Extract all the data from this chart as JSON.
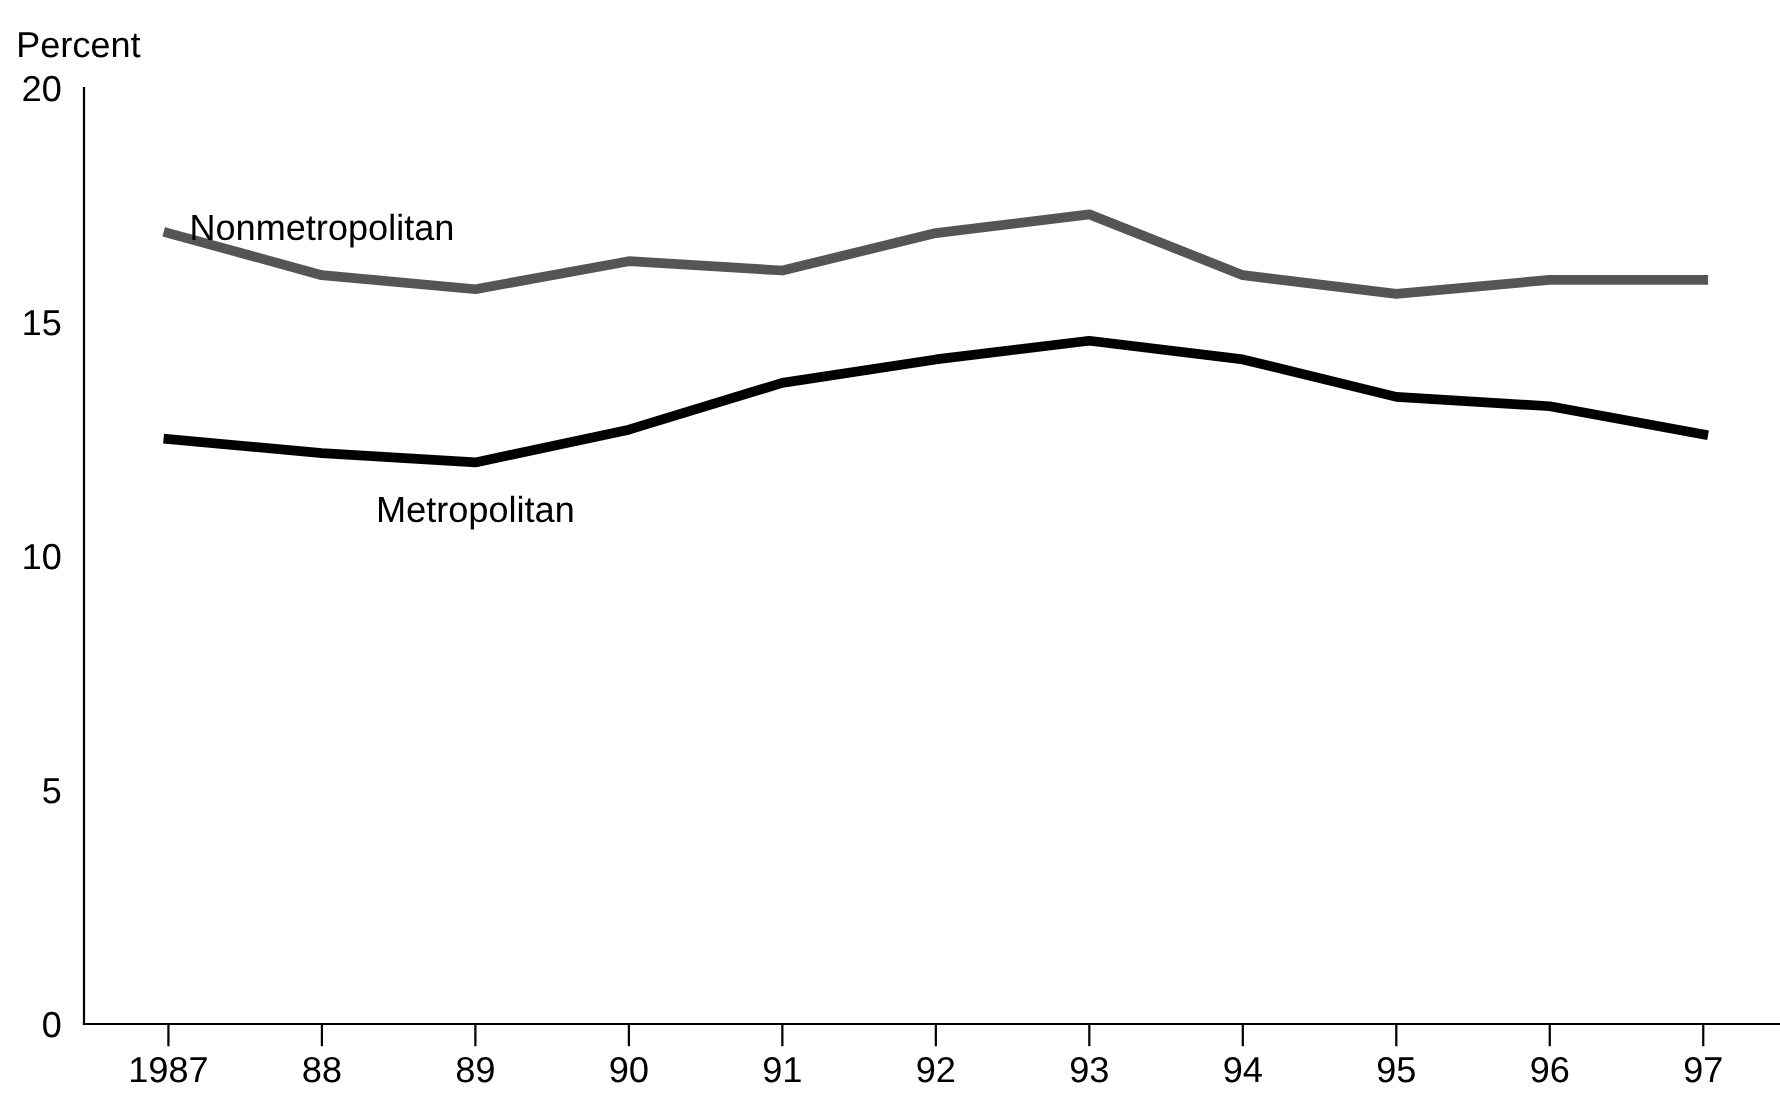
{
  "chart_data": {
    "type": "line",
    "ylabel": "Percent",
    "categories": [
      "1987",
      "88",
      "89",
      "90",
      "91",
      "92",
      "93",
      "94",
      "95",
      "96",
      "97"
    ],
    "series": [
      {
        "name": "Nonmetropolitan",
        "color": "#555555",
        "values": [
          16.9,
          16.0,
          15.7,
          16.3,
          16.1,
          16.9,
          17.3,
          16.0,
          15.6,
          15.9,
          15.9
        ]
      },
      {
        "name": "Metropolitan",
        "color": "#000000",
        "values": [
          12.5,
          12.2,
          12.0,
          12.7,
          13.7,
          14.2,
          14.6,
          14.2,
          13.4,
          13.2,
          12.6
        ]
      }
    ],
    "ylim": [
      0,
      20
    ],
    "yticks": [
      0,
      5,
      10,
      15,
      20
    ],
    "grid": false,
    "legend": false,
    "marker": "none",
    "line_style": "solid"
  }
}
